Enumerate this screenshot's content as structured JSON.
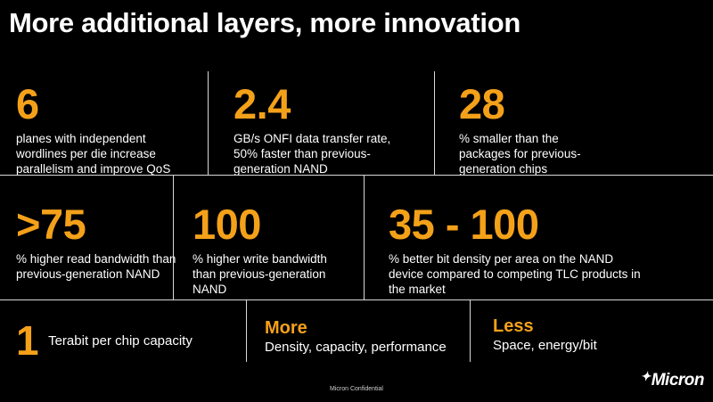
{
  "title": "More additional layers, more innovation",
  "row1": [
    {
      "value": "6",
      "desc": "planes with independent wordlines per die increase parallelism and improve QoS"
    },
    {
      "value": "2.4",
      "desc": "GB/s ONFI data transfer rate, 50% faster than previous-generation NAND"
    },
    {
      "value": "28",
      "desc": "% smaller than the packages for previous-generation chips"
    }
  ],
  "row2": [
    {
      "value": ">75",
      "desc": "% higher read bandwidth than previous-generation NAND"
    },
    {
      "value": "100",
      "desc": "% higher write bandwidth than previous-generation NAND"
    },
    {
      "value": "35 - 100",
      "desc": "% better bit density per area on the NAND device compared to competing TLC products in the market"
    }
  ],
  "row3": [
    {
      "value": "1",
      "desc": "Terabit per chip capacity"
    },
    {
      "value": "More",
      "desc": "Density, capacity, performance"
    },
    {
      "value": "Less",
      "desc": "Space, energy/bit"
    }
  ],
  "footer": {
    "confidential": "Micron Confidential",
    "logo": "Micron"
  },
  "colors": {
    "accent": "#f4a11a",
    "background": "#000000",
    "text": "#ffffff"
  }
}
